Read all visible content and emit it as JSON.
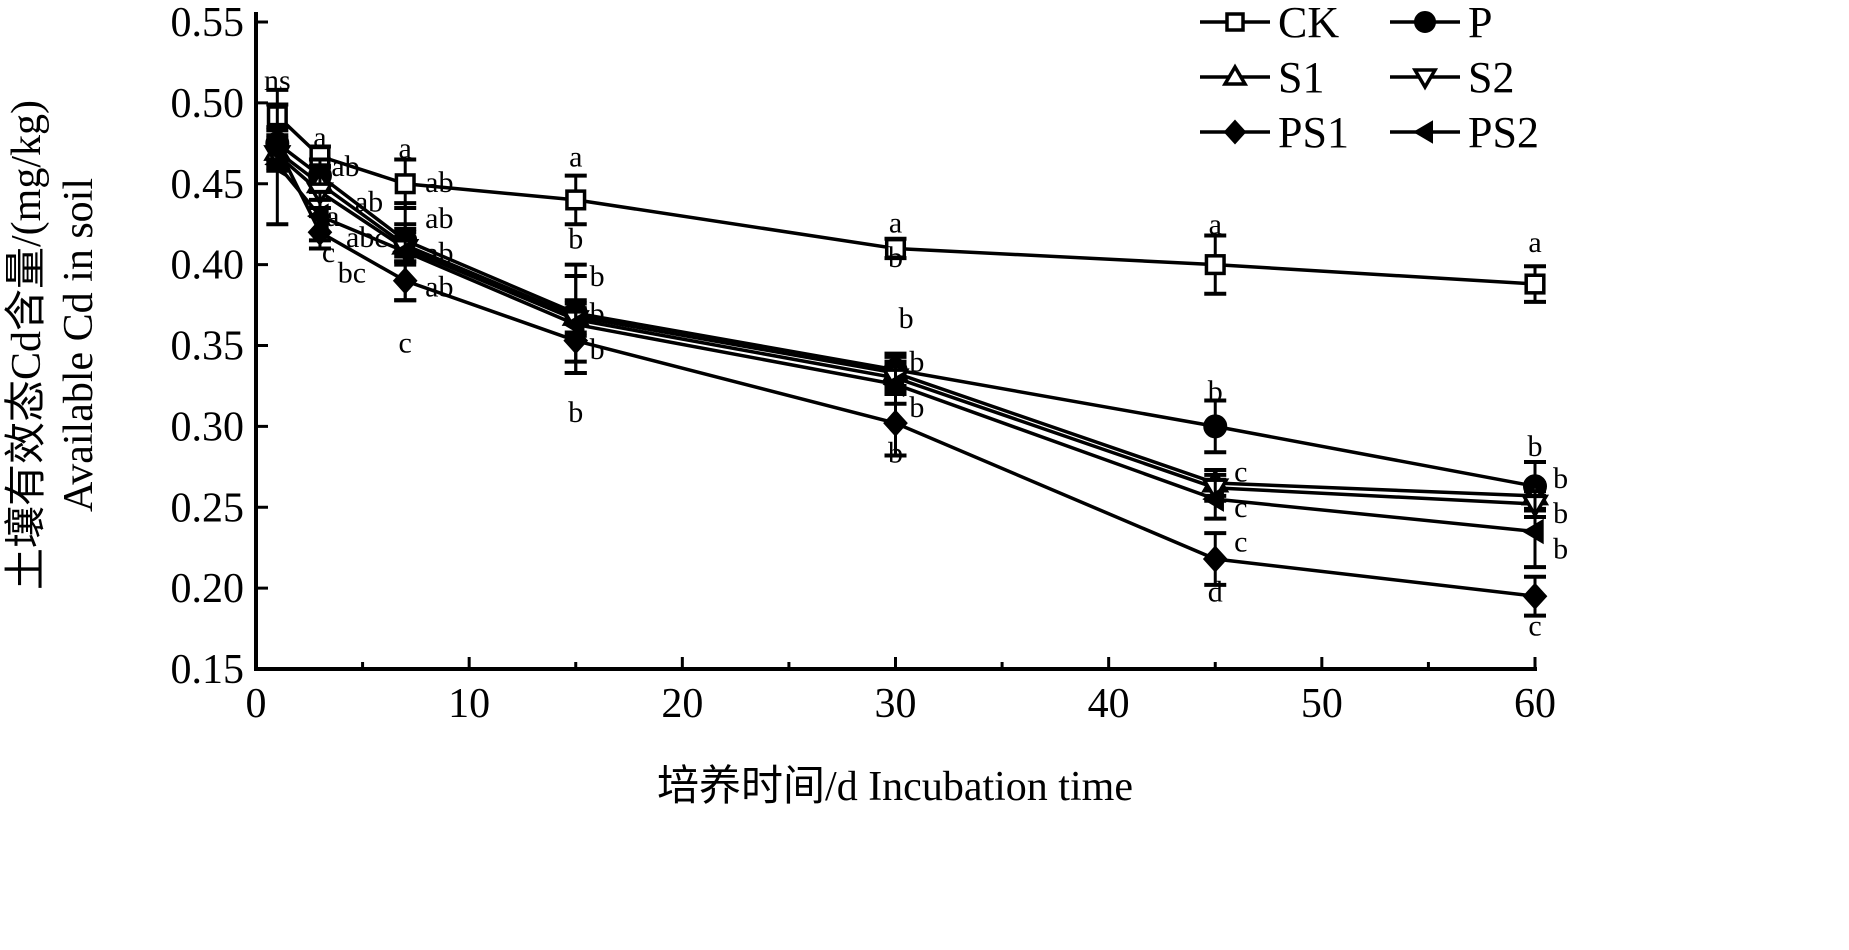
{
  "chart_data": {
    "type": "line",
    "xlabel": "培养时间/d  Incubation time",
    "ylabel_cn": "土壤有效态Cd含量/(mg/kg)",
    "ylabel_en": "Available Cd in soil",
    "xlim": [
      0,
      60
    ],
    "ylim": [
      0.15,
      0.55
    ],
    "xticks": [
      0,
      10,
      20,
      30,
      40,
      50,
      60
    ],
    "yticks": [
      "0.15",
      "0.20",
      "0.25",
      "0.30",
      "0.35",
      "0.40",
      "0.45",
      "0.50",
      "0.55"
    ],
    "x": [
      1,
      3,
      7,
      15,
      30,
      45,
      60
    ],
    "legend_position": "top-right",
    "series": [
      {
        "name": "CK",
        "marker": "open-square",
        "values": [
          0.492,
          0.467,
          0.45,
          0.44,
          0.41,
          0.4,
          0.388
        ],
        "err": [
          0.016,
          0.006,
          0.015,
          0.015,
          0.006,
          0.018,
          0.011
        ]
      },
      {
        "name": "P",
        "marker": "filled-circle",
        "values": [
          0.475,
          0.455,
          0.415,
          0.37,
          0.335,
          0.3,
          0.263
        ],
        "err": [
          0.01,
          0.01,
          0.01,
          0.03,
          0.01,
          0.016,
          0.015
        ]
      },
      {
        "name": "S1",
        "marker": "open-triangle-up",
        "values": [
          0.47,
          0.45,
          0.412,
          0.368,
          0.333,
          0.265,
          0.257
        ],
        "err": [
          0.01,
          0.01,
          0.01,
          0.01,
          0.01,
          0.008,
          0.008
        ]
      },
      {
        "name": "S2",
        "marker": "open-triangle-down",
        "values": [
          0.468,
          0.445,
          0.41,
          0.366,
          0.33,
          0.262,
          0.252
        ],
        "err": [
          0.01,
          0.01,
          0.01,
          0.01,
          0.01,
          0.008,
          0.008
        ]
      },
      {
        "name": "PS1",
        "marker": "filled-diamond",
        "values": [
          0.473,
          0.42,
          0.39,
          0.353,
          0.302,
          0.218,
          0.195
        ],
        "err": [
          0.01,
          0.01,
          0.012,
          0.02,
          0.02,
          0.016,
          0.012
        ]
      },
      {
        "name": "PS2",
        "marker": "filled-triangle-left",
        "values": [
          0.462,
          0.43,
          0.408,
          0.363,
          0.326,
          0.255,
          0.235
        ],
        "err": [
          0.037,
          0.015,
          0.03,
          0.03,
          0.012,
          0.012,
          0.022
        ]
      }
    ],
    "annotations": [
      {
        "text": "ns",
        "x": 1,
        "y": 0.514
      },
      {
        "text": "a",
        "x": 3,
        "y": 0.479
      },
      {
        "text": "ab",
        "x": 4.2,
        "y": 0.461
      },
      {
        "text": "ab",
        "x": 5.3,
        "y": 0.449
      },
      {
        "text": "abc",
        "x": 5.2,
        "y": 0.437
      },
      {
        "text": "a",
        "x": 3.6,
        "y": 0.43
      },
      {
        "text": "bc",
        "x": 4.5,
        "y": 0.421
      },
      {
        "text": "c",
        "x": 3.4,
        "y": 0.409
      },
      {
        "text": "a",
        "x": 7,
        "y": 0.472
      },
      {
        "text": "ab",
        "x": 8.6,
        "y": 0.451
      },
      {
        "text": "ab",
        "x": 8.6,
        "y": 0.435
      },
      {
        "text": "ab",
        "x": 8.6,
        "y": 0.42
      },
      {
        "text": "ab",
        "x": 8.6,
        "y": 0.405
      },
      {
        "text": "c",
        "x": 7,
        "y": 0.352
      },
      {
        "text": "a",
        "x": 15,
        "y": 0.467
      },
      {
        "text": "b",
        "x": 15,
        "y": 0.416
      },
      {
        "text": "b",
        "x": 16,
        "y": 0.393
      },
      {
        "text": "b",
        "x": 16,
        "y": 0.37
      },
      {
        "text": "b",
        "x": 16,
        "y": 0.354
      },
      {
        "text": "b",
        "x": 15,
        "y": 0.309
      },
      {
        "text": "a",
        "x": 30,
        "y": 0.426
      },
      {
        "text": "b",
        "x": 30,
        "y": 0.406
      },
      {
        "text": "b",
        "x": 30.5,
        "y": 0.367
      },
      {
        "text": "b",
        "x": 31,
        "y": 0.34
      },
      {
        "text": "b",
        "x": 31,
        "y": 0.312
      },
      {
        "text": "b",
        "x": 30,
        "y": 0.284
      },
      {
        "text": "a",
        "x": 45,
        "y": 0.425
      },
      {
        "text": "b",
        "x": 45,
        "y": 0.322
      },
      {
        "text": "c",
        "x": 46.2,
        "y": 0.272
      },
      {
        "text": "c",
        "x": 46.2,
        "y": 0.26
      },
      {
        "text": "c",
        "x": 46.2,
        "y": 0.246
      },
      {
        "text": "d",
        "x": 45,
        "y": 0.198
      },
      {
        "text": "a",
        "x": 60,
        "y": 0.414
      },
      {
        "text": "b",
        "x": 60,
        "y": 0.288
      },
      {
        "text": "b",
        "x": 61.2,
        "y": 0.268
      },
      {
        "text": "b",
        "x": 61.2,
        "y": 0.254
      },
      {
        "text": "b",
        "x": 61.2,
        "y": 0.237
      },
      {
        "text": "c",
        "x": 60,
        "y": 0.177
      }
    ]
  }
}
